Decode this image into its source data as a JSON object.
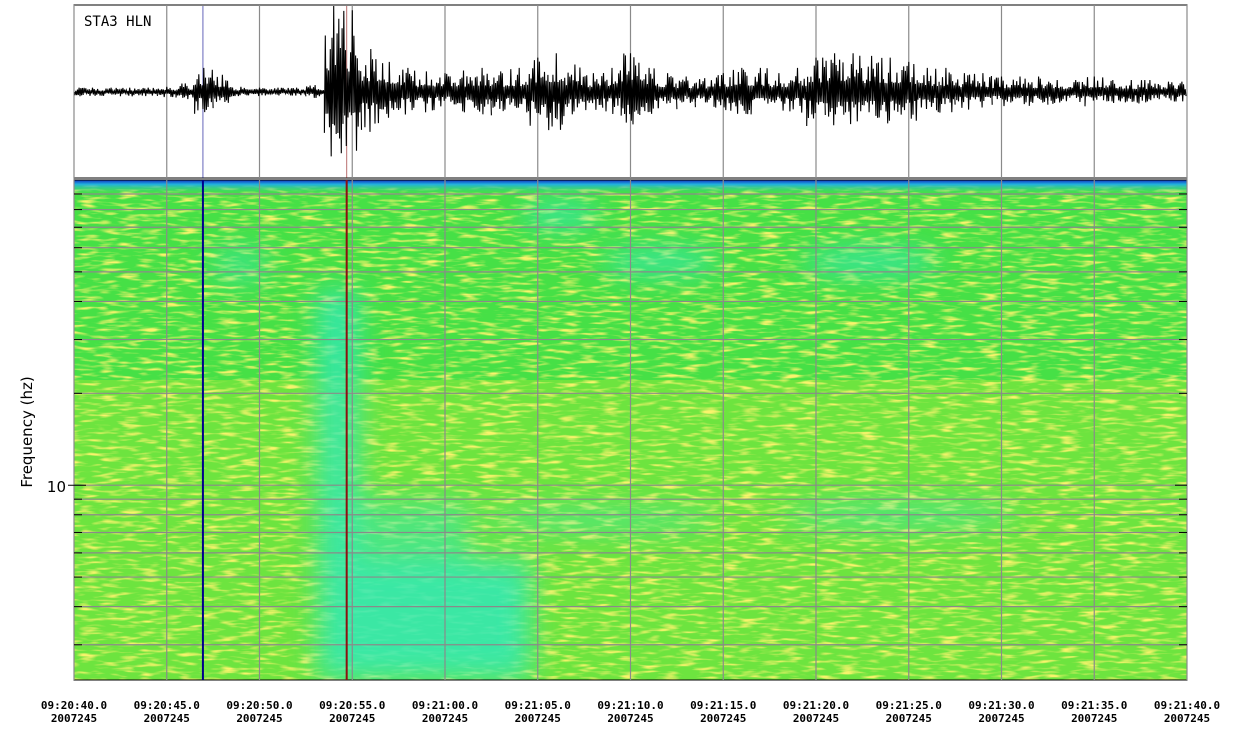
{
  "chart_data": {
    "type": "seismogram",
    "title": "STA3 HLN",
    "grid": true,
    "xlim": [
      0,
      60
    ],
    "xticks": [
      {
        "value": 0,
        "label": "09:20:40.0"
      },
      {
        "value": 5,
        "label": "09:20:45.0"
      },
      {
        "value": 10,
        "label": "09:20:50.0"
      },
      {
        "value": 15,
        "label": "09:20:55.0"
      },
      {
        "value": 20,
        "label": "09:21:00.0"
      },
      {
        "value": 25,
        "label": "09:21:05.0"
      },
      {
        "value": 30,
        "label": "09:21:10.0"
      },
      {
        "value": 35,
        "label": "09:21:15.0"
      },
      {
        "value": 40,
        "label": "09:21:20.0"
      },
      {
        "value": 45,
        "label": "09:21:25.0"
      },
      {
        "value": 50,
        "label": "09:21:30.0"
      },
      {
        "value": 55,
        "label": "09:21:35.0"
      },
      {
        "value": 60,
        "label": "09:21:40.0"
      }
    ],
    "xtick_dates": [
      "2007245",
      "2007245",
      "2007245",
      "2007245",
      "2007245",
      "2007245",
      "2007245",
      "2007245",
      "2007245",
      "2007245",
      "2007245",
      "2007245",
      "2007245"
    ],
    "waveform": {
      "color": "#000000",
      "ylim": [
        -100,
        100
      ],
      "x": [
        0,
        1,
        2,
        3,
        4,
        5,
        6,
        7,
        8,
        9,
        10,
        11,
        12,
        13,
        14,
        15,
        16,
        17,
        18,
        19,
        20,
        21,
        22,
        23,
        24,
        25,
        26,
        27,
        28,
        29,
        30,
        31,
        32,
        33,
        34,
        35,
        36,
        37,
        38,
        39,
        40,
        41,
        42,
        43,
        44,
        45,
        46,
        47,
        48,
        49,
        50,
        51,
        52,
        53,
        54,
        55,
        56,
        57,
        58,
        59,
        60
      ],
      "values": [
        5,
        5,
        5,
        5,
        5,
        6,
        10,
        28,
        20,
        6,
        5,
        5,
        5,
        8,
        100,
        95,
        50,
        35,
        28,
        24,
        22,
        25,
        28,
        24,
        28,
        40,
        45,
        32,
        22,
        28,
        45,
        28,
        22,
        18,
        16,
        22,
        28,
        28,
        22,
        28,
        40,
        45,
        45,
        42,
        40,
        35,
        28,
        28,
        22,
        22,
        18,
        18,
        18,
        14,
        14,
        18,
        14,
        14,
        14,
        12,
        12
      ]
    },
    "spectrogram": {
      "ylabel": "Frequency (hz)",
      "log_y": true,
      "ylim": [
        2.3,
        100
      ],
      "yticks": [
        10
      ],
      "y_minor_ticks": [
        3,
        4,
        5,
        6,
        7,
        8,
        9,
        20,
        30,
        40,
        50,
        60,
        70,
        80,
        90
      ]
    },
    "markers": [
      {
        "x": 6.95,
        "color": "#00008c"
      },
      {
        "x": 14.7,
        "color": "#8c1010"
      }
    ]
  }
}
